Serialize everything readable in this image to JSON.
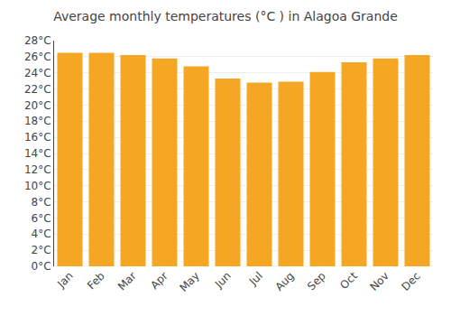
{
  "chart_data": {
    "type": "bar",
    "title": "Average monthly temperatures (°C ) in Alagoa Grande",
    "categories": [
      "Jan",
      "Feb",
      "Mar",
      "Apr",
      "May",
      "Jun",
      "Jul",
      "Aug",
      "Sep",
      "Oct",
      "Nov",
      "Dec"
    ],
    "values": [
      26.5,
      26.5,
      26.2,
      25.8,
      24.8,
      23.3,
      22.8,
      22.9,
      24.1,
      25.3,
      25.8,
      26.2
    ],
    "color": "#F5A623",
    "ylim": [
      0,
      28
    ],
    "yticks": [
      {
        "value": 0,
        "label": "0°C"
      },
      {
        "value": 2,
        "label": "2°C"
      },
      {
        "value": 4,
        "label": "4°C"
      },
      {
        "value": 6,
        "label": "6°C"
      },
      {
        "value": 8,
        "label": "8°C"
      },
      {
        "value": 10,
        "label": "10°C"
      },
      {
        "value": 12,
        "label": "12°C"
      },
      {
        "value": 14,
        "label": "14°C"
      },
      {
        "value": 16,
        "label": "16°C"
      },
      {
        "value": 18,
        "label": "18°C"
      },
      {
        "value": 20,
        "label": "20°C"
      },
      {
        "value": 22,
        "label": "22°C"
      },
      {
        "value": 24,
        "label": "24°C"
      },
      {
        "value": 26,
        "label": "26°C"
      },
      {
        "value": 28,
        "label": "28°C"
      }
    ],
    "grid": true
  }
}
